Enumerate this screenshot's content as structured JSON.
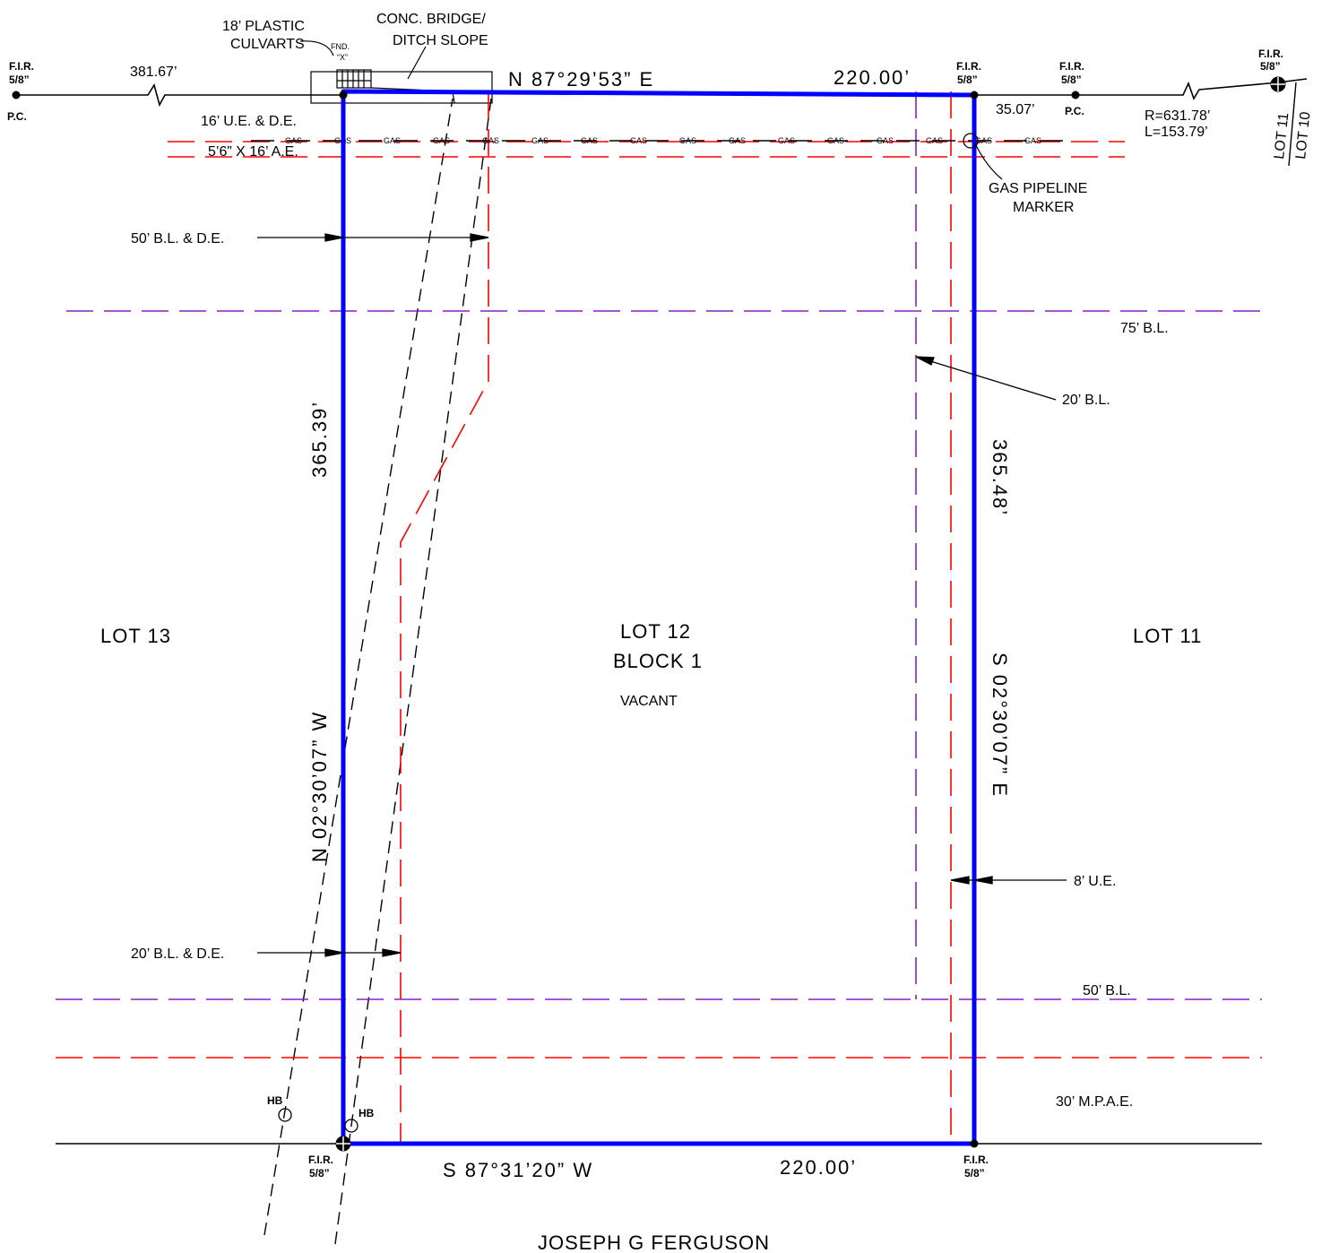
{
  "lots": {
    "lot12": "LOT 12",
    "block": "BLOCK 1",
    "status": "VACANT",
    "lot13": "LOT 13",
    "lot11": "LOT 11",
    "lot11_small": "LOT 11",
    "lot10_small": "LOT 10",
    "south_owner": "JOSEPH G FERGUSON"
  },
  "bearings": {
    "north": "N 87°29’53” E",
    "north_dist": "220.00’",
    "south": "S 87°31’20” W",
    "south_dist": "220.00’",
    "west": "N 02°30’07” W",
    "west_dist": "365.39’",
    "east": "S 02°30’07” E",
    "east_dist": "365.48’"
  },
  "annotations": {
    "culverts_1": "18’ PLASTIC",
    "culverts_2": "CULVARTS",
    "bridge_1": "CONC. BRIDGE/",
    "bridge_2": "DITCH SLOPE",
    "fnd": "FND.",
    "fnd_x": "“X”",
    "ue_de": "16’ U.E. & D.E.",
    "ae": "5’6” X 16’ A.E.",
    "bl_de_50": "50’ B.L. & D.E.",
    "bl_75": "75’ B.L.",
    "bl_20": "20’ B.L.",
    "ue_8": "8’ U.E.",
    "bl_de_20": "20’ B.L. & D.E.",
    "bl_50": "50’ B.L.",
    "mpae": "30’ M.P.A.E.",
    "gas_marker_1": "GAS PIPELINE",
    "gas_marker_2": "MARKER",
    "dist_381": "381.67’",
    "dist_35": "35.07’",
    "radius": "R=631.78’",
    "length": "L=153.79’",
    "hb": "HB",
    "gas": "GAS"
  },
  "monuments": {
    "fir": "F.I.R.",
    "size": "5/8”",
    "pc": "P.C."
  },
  "colors": {
    "boundary": "#0000ff",
    "easement": "#ff0000",
    "building_line": "#8b1fc2",
    "linework": "#000000"
  }
}
